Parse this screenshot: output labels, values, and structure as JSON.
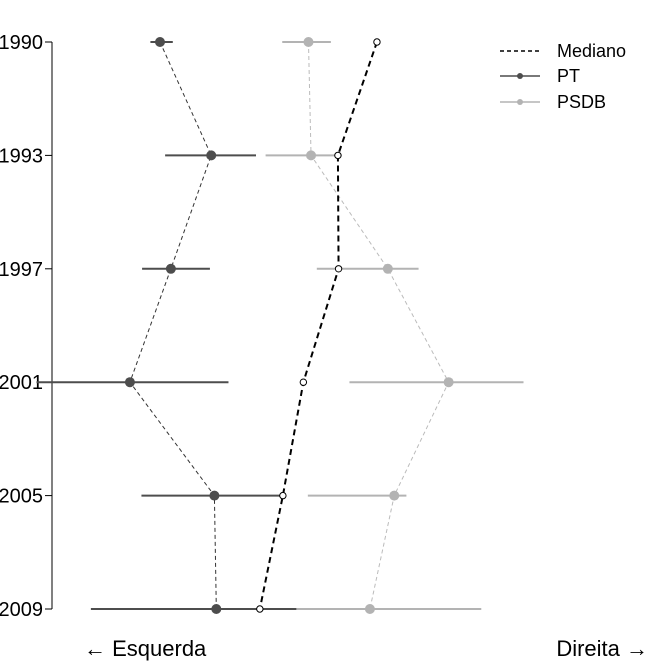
{
  "chart_data": {
    "type": "dot-interval",
    "orientation": "horizontal",
    "years": [
      "1990",
      "1993",
      "1997",
      "2001",
      "2005",
      "2009"
    ],
    "x_range": [
      0,
      1
    ],
    "series": [
      {
        "name": "PT",
        "color": "#4d4d4d",
        "line_color": "#333333",
        "points": [
          0.225,
          0.305,
          0.242,
          0.178,
          0.31,
          0.313
        ],
        "lower": [
          0.21,
          0.233,
          0.197,
          0.032,
          0.196,
          0.117
        ],
        "upper": [
          0.245,
          0.375,
          0.303,
          0.332,
          0.42,
          0.457
        ]
      },
      {
        "name": "PSDB",
        "color": "#b3b3b3",
        "line_color": "#bbbbbb",
        "points": [
          0.457,
          0.461,
          0.581,
          0.676,
          0.591,
          0.553
        ],
        "lower": [
          0.416,
          0.39,
          0.47,
          0.521,
          0.456,
          0.438
        ],
        "upper": [
          0.492,
          0.509,
          0.629,
          0.793,
          0.61,
          0.727
        ]
      }
    ],
    "mediano": {
      "name": "Mediano",
      "color": "#000000",
      "points": [
        0.564,
        0.503,
        0.504,
        0.449,
        0.417,
        0.381
      ]
    },
    "legend": {
      "position": "top-right",
      "entries": [
        "Mediano",
        "PT",
        "PSDB"
      ]
    },
    "x_axis_labels": {
      "left": "← Esquerda",
      "right": "Direita →"
    },
    "grid": false
  }
}
